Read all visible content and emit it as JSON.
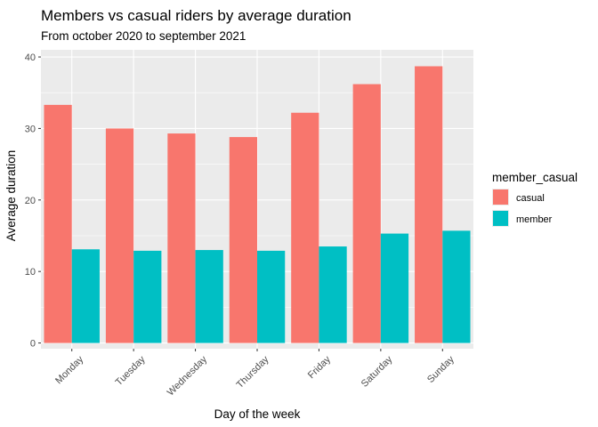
{
  "chart_data": {
    "type": "bar",
    "title": "Members vs casual riders by average duration",
    "subtitle": "From october 2020 to september 2021",
    "xlabel": "Day of the week",
    "ylabel": "Average duration",
    "categories": [
      "Monday",
      "Tuesday",
      "Wednesday",
      "Thursday",
      "Friday",
      "Saturday",
      "Sunday"
    ],
    "series": [
      {
        "name": "casual",
        "color": "#F8766D",
        "values": [
          33.3,
          30.0,
          29.3,
          28.8,
          32.2,
          36.2,
          38.7
        ]
      },
      {
        "name": "member",
        "color": "#00BFC4",
        "values": [
          13.1,
          12.9,
          13.0,
          12.9,
          13.5,
          15.3,
          15.7
        ]
      }
    ],
    "ylim": [
      -0.8,
      41.0
    ],
    "yticks": [
      0,
      10,
      20,
      30,
      40
    ],
    "legend_title": "member_casual",
    "legend_position": "right",
    "grid": true,
    "panel_background": "#EBEBEB",
    "grid_color": "#FFFFFF"
  }
}
